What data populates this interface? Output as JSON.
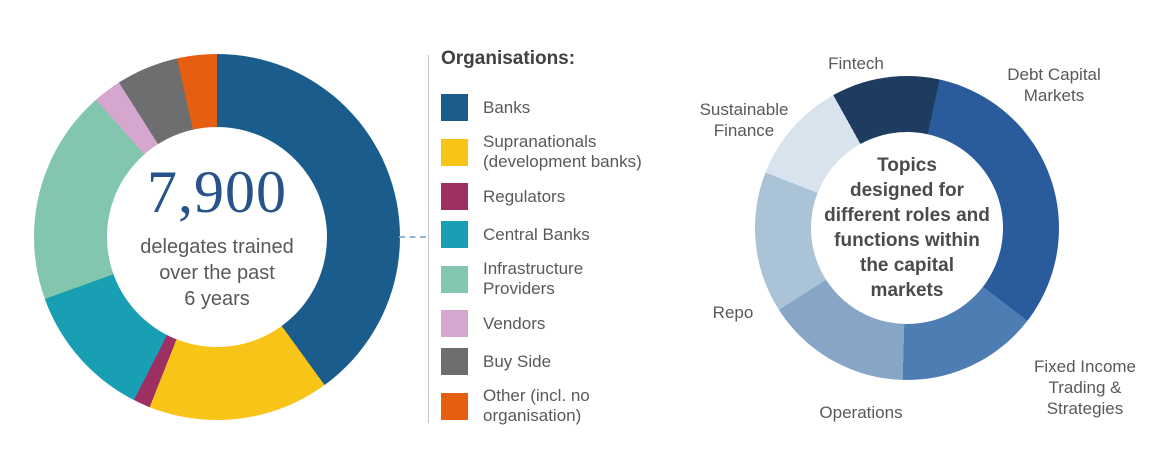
{
  "chart_data": [
    {
      "type": "pie",
      "variant": "donut",
      "name": "organisations-donut",
      "legend_title": "Organisations:",
      "center_value": "7,900",
      "center_label": "delegates trained\nover the past\n6 years",
      "start_angle": 0,
      "values_estimated": true,
      "segments": [
        {
          "label": "Banks",
          "value": 40,
          "color": "#1A5C8C"
        },
        {
          "label": "Supranationals (development banks)",
          "value": 16,
          "color": "#F7C417"
        },
        {
          "label": "Regulators",
          "value": 1.5,
          "color": "#9E2F63"
        },
        {
          "label": "Central Banks",
          "value": 12,
          "color": "#199FB4"
        },
        {
          "label": "Infrastructure Providers",
          "value": 19,
          "color": "#82C6AE"
        },
        {
          "label": "Vendors",
          "value": 2.5,
          "color": "#D6A7CE"
        },
        {
          "label": "Buy Side",
          "value": 5.5,
          "color": "#6D6E70"
        },
        {
          "label": "Other (incl. no organisation)",
          "value": 3.5,
          "color": "#E65F11"
        }
      ]
    },
    {
      "type": "pie",
      "variant": "donut",
      "name": "topics-donut",
      "center_text": "Topics\ndesigned for\ndifferent roles and\nfunctions within\nthe capital\nmarkets",
      "start_angle": -29,
      "values_estimated": true,
      "segments": [
        {
          "label": "Fintech",
          "value": 11.5,
          "color": "#1E3C60"
        },
        {
          "label": "Debt Capital Markets",
          "value": 32,
          "color": "#2A5C9D"
        },
        {
          "label": "Fixed Income Trading & Strategies",
          "value": 15,
          "color": "#4D7DB2"
        },
        {
          "label": "Operations",
          "value": 15.5,
          "color": "#87A6C6"
        },
        {
          "label": "Repo",
          "value": 15,
          "color": "#ABC3D7"
        },
        {
          "label": "Sustainable Finance",
          "value": 11,
          "color": "#D8E3ED"
        }
      ]
    }
  ],
  "colors": {
    "big_number": "#27538C",
    "body_text": "#58595B",
    "divider": "#C4C5C7",
    "connector": "#8FB6D4"
  }
}
